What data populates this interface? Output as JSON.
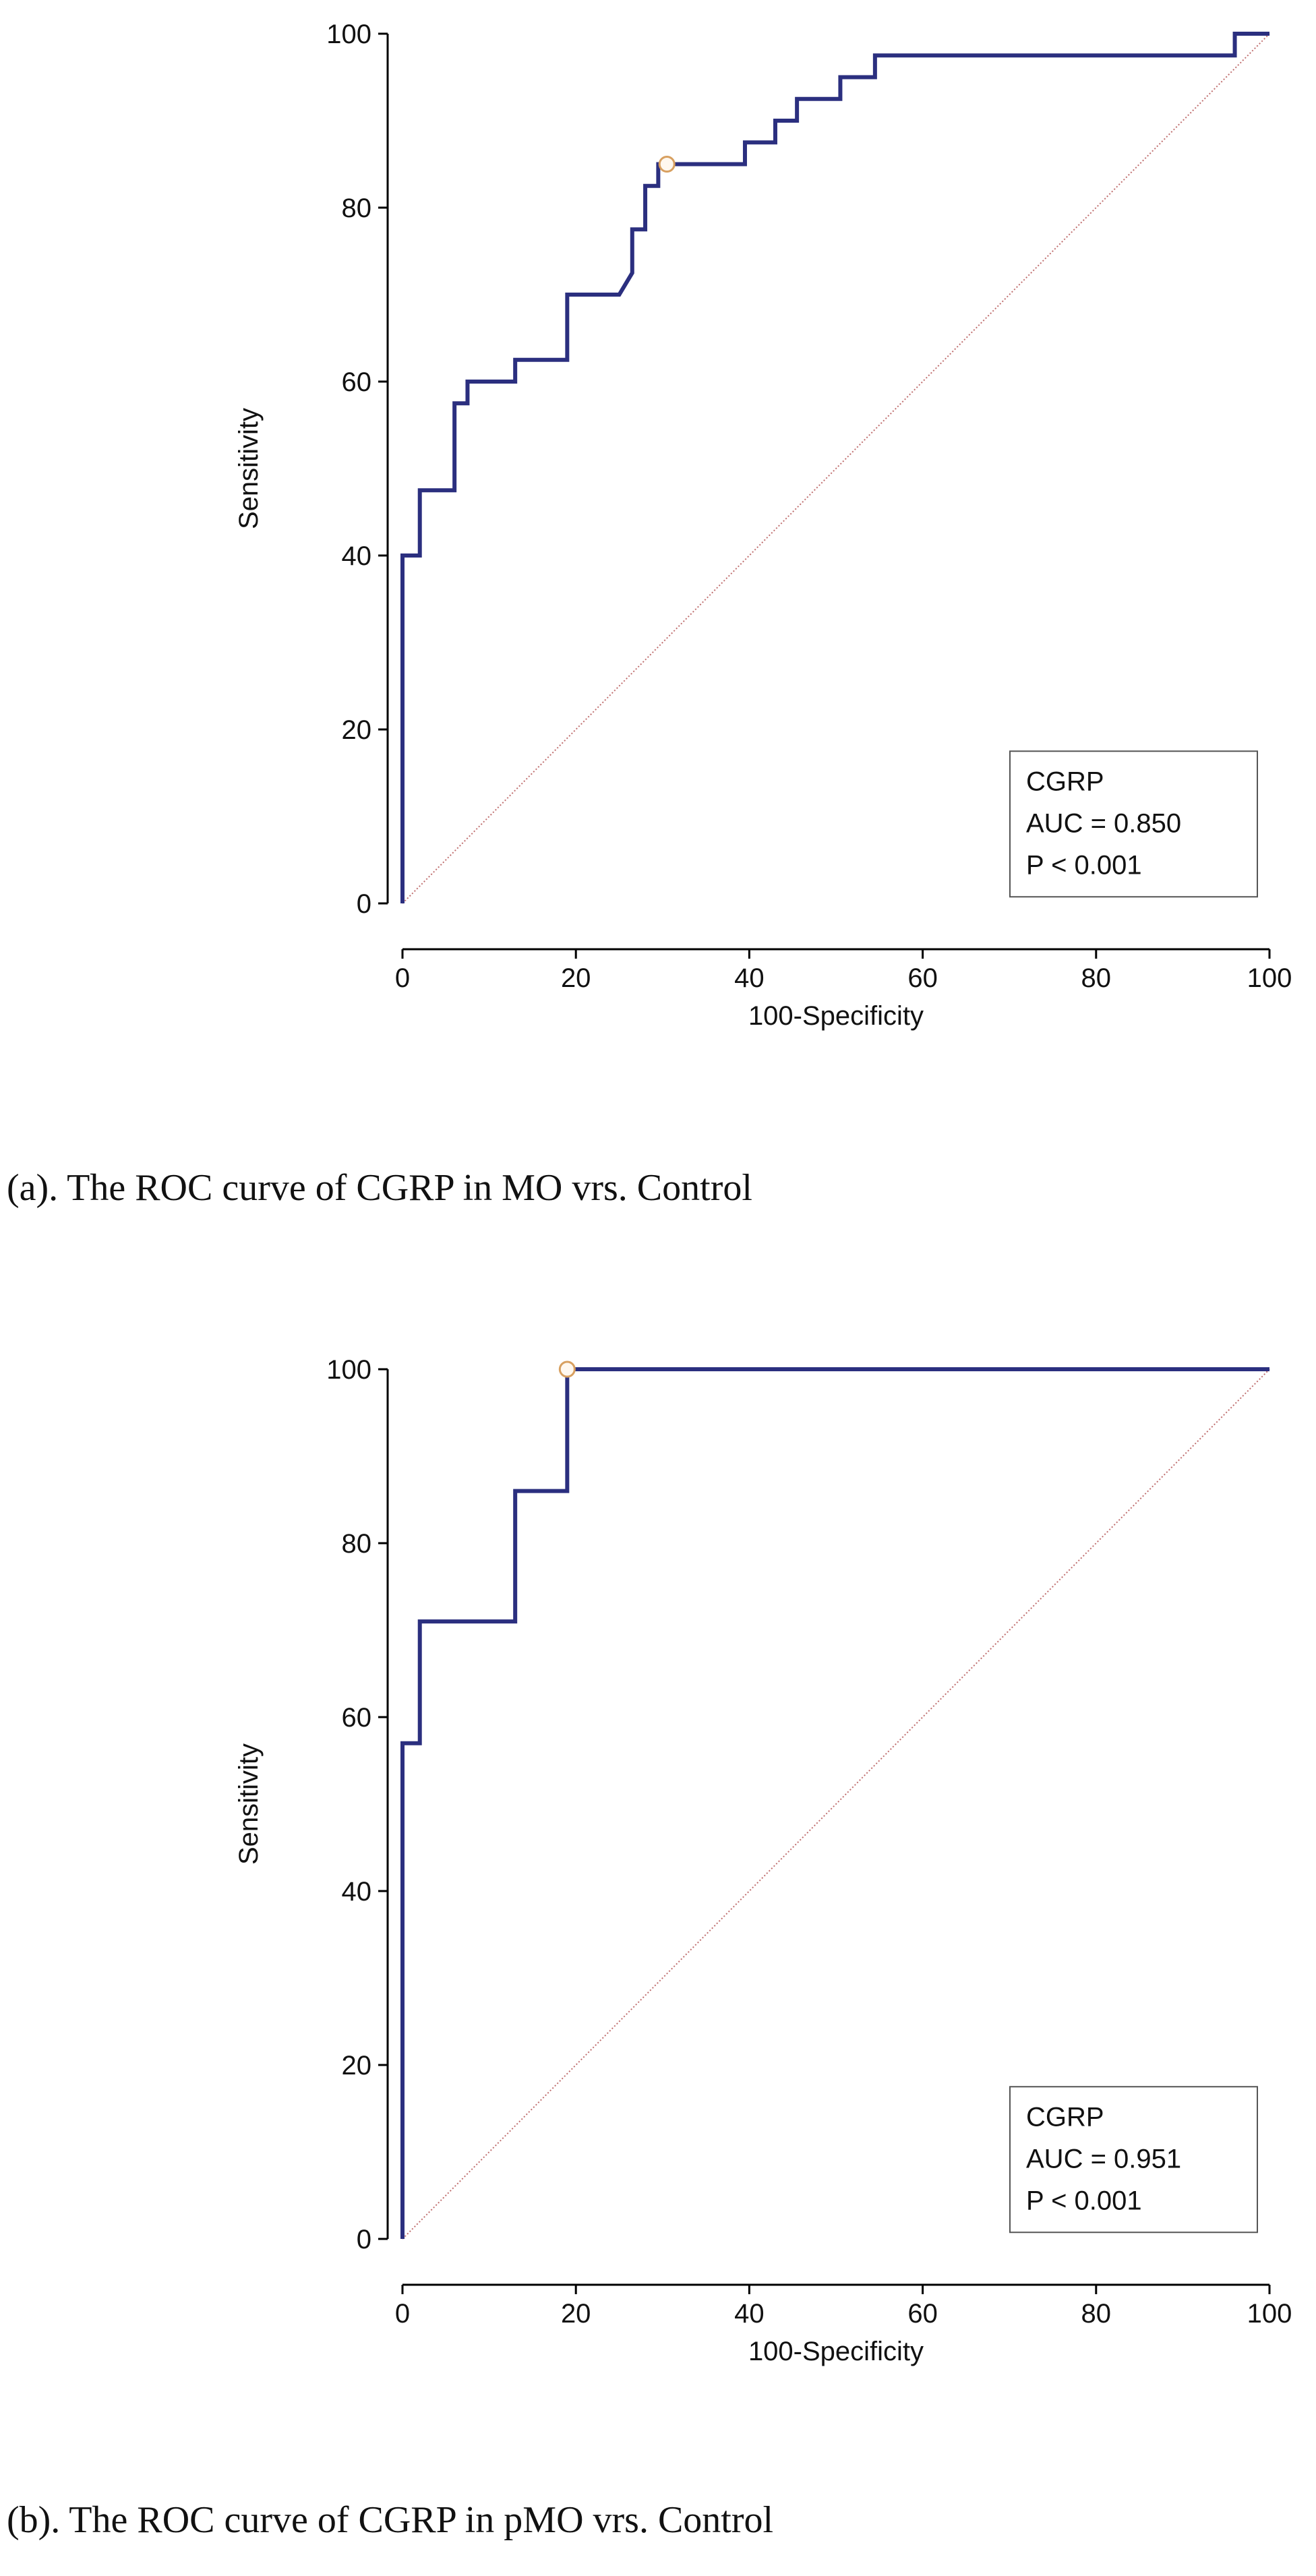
{
  "chart_data": [
    {
      "type": "line",
      "xlabel": "100-Specificity",
      "ylabel": "Sensitivity",
      "xlim": [
        0,
        100
      ],
      "ylim": [
        0,
        100
      ],
      "xticks": [
        0,
        20,
        40,
        60,
        80,
        100
      ],
      "yticks": [
        0,
        20,
        40,
        60,
        80,
        100
      ],
      "grid": false,
      "legend_position": "bottom-right",
      "legend": [
        "CGRP",
        "AUC = 0.850",
        "P < 0.001"
      ],
      "caption": "(a). The ROC curve of CGRP in MO vrs. Control",
      "curve_color": "#2b2f7f",
      "reference_color": "#c07070",
      "series": [
        {
          "x": [
            0,
            0,
            2,
            2,
            6,
            6,
            7.5,
            7.5,
            13,
            13,
            19,
            19,
            25,
            26.5,
            26.5,
            28,
            28,
            29.5,
            29.5,
            30.5,
            39.5,
            39.5,
            43,
            43,
            44,
            44,
            45.5,
            45.5,
            50.5,
            50.5,
            54.5,
            54.5,
            96,
            96,
            100
          ],
          "y": [
            0,
            40,
            40,
            47.5,
            47.5,
            57.5,
            57.5,
            60,
            60,
            62.5,
            62.5,
            70,
            70,
            72.5,
            77.5,
            77.5,
            82.5,
            82.5,
            85,
            85,
            85,
            87.5,
            87.5,
            90,
            90,
            90,
            90,
            92.5,
            92.5,
            95,
            95,
            97.5,
            97.5,
            100,
            100
          ]
        },
        {
          "x": [
            0,
            100
          ],
          "y": [
            0,
            100
          ]
        }
      ],
      "criterion_point": {
        "x": 30.5,
        "y": 85
      }
    },
    {
      "type": "line",
      "xlabel": "100-Specificity",
      "ylabel": "Sensitivity",
      "xlim": [
        0,
        100
      ],
      "ylim": [
        0,
        100
      ],
      "xticks": [
        0,
        20,
        40,
        60,
        80,
        100
      ],
      "yticks": [
        0,
        20,
        40,
        60,
        80,
        100
      ],
      "grid": false,
      "legend_position": "bottom-right",
      "legend": [
        "CGRP",
        "AUC = 0.951",
        "P < 0.001"
      ],
      "caption": "(b). The ROC curve of CGRP in pMO vrs. Control",
      "curve_color": "#2b2f7f",
      "reference_color": "#c07070",
      "series": [
        {
          "x": [
            0,
            0,
            2,
            2,
            13,
            13,
            19,
            19,
            100
          ],
          "y": [
            0,
            57,
            57,
            71,
            71,
            86,
            86,
            100,
            100
          ]
        },
        {
          "x": [
            0,
            100
          ],
          "y": [
            0,
            100
          ]
        }
      ],
      "criterion_point": {
        "x": 19,
        "y": 100
      }
    }
  ]
}
